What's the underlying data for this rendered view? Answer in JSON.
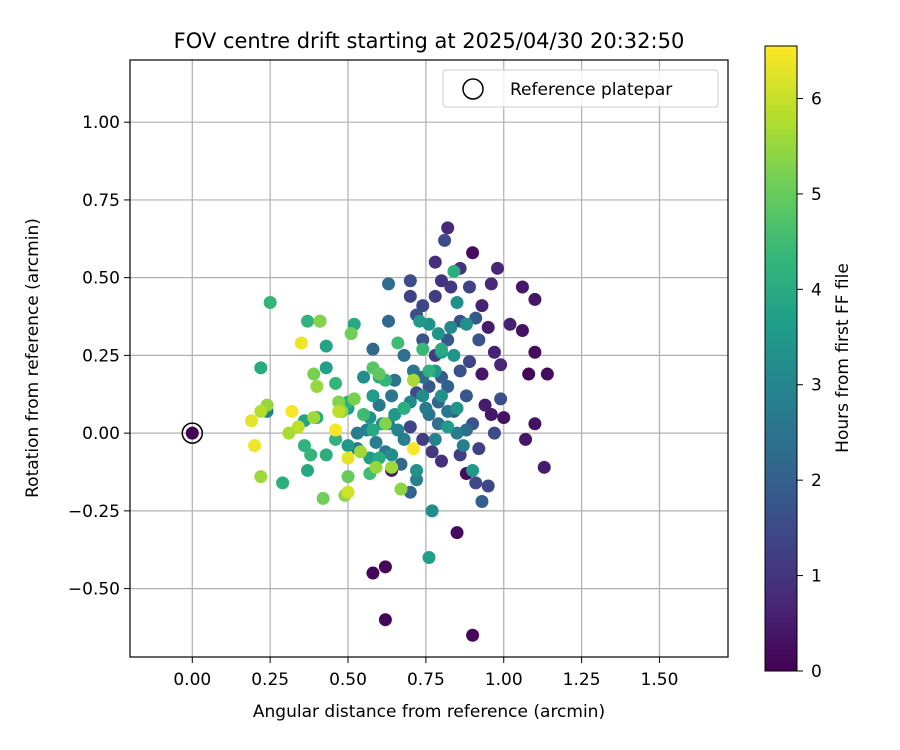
{
  "chart_data": {
    "type": "scatter",
    "title": "FOV centre drift starting at 2025/04/30 20:32:50",
    "xlabel": "Angular distance from reference (arcmin)",
    "ylabel": "Rotation from reference (arcmin)",
    "xlim": [
      -0.2,
      1.72
    ],
    "ylim": [
      -0.72,
      1.2
    ],
    "x_ticks": [
      0.0,
      0.25,
      0.5,
      0.75,
      1.0,
      1.25,
      1.5
    ],
    "x_tick_labels": [
      "0.00",
      "0.25",
      "0.50",
      "0.75",
      "1.00",
      "1.25",
      "1.50"
    ],
    "y_ticks": [
      -0.5,
      -0.25,
      0.0,
      0.25,
      0.5,
      0.75,
      1.0
    ],
    "y_tick_labels": [
      "−0.50",
      "−0.25",
      "0.00",
      "0.25",
      "0.50",
      "0.75",
      "1.00"
    ],
    "grid": true,
    "legend": {
      "placement": "top-right",
      "entries": [
        "Reference platepar"
      ]
    },
    "reference_point": {
      "x": 0.0,
      "y": 0.0,
      "label": "Reference platepar"
    },
    "colorbar": {
      "label": "Hours from first FF file",
      "min": 0,
      "max": 6.55,
      "ticks": [
        0,
        1,
        2,
        3,
        4,
        5,
        6
      ],
      "tick_labels": [
        "0",
        "1",
        "2",
        "3",
        "4",
        "5",
        "6"
      ],
      "colormap": "viridis",
      "colors": [
        "#440154",
        "#482878",
        "#3e4989",
        "#31688e",
        "#26828e",
        "#1f9e89",
        "#35b779",
        "#6ece58",
        "#b5de2b",
        "#fde725"
      ]
    },
    "points": [
      [
        0.0,
        0.0,
        0.0
      ],
      [
        0.58,
        -0.45,
        0.1
      ],
      [
        0.62,
        -0.43,
        0.1
      ],
      [
        0.62,
        -0.6,
        0.1
      ],
      [
        0.9,
        -0.65,
        0.1
      ],
      [
        0.85,
        -0.32,
        0.2
      ],
      [
        0.88,
        -0.13,
        0.2
      ],
      [
        0.64,
        -0.12,
        0.5
      ],
      [
        1.0,
        0.05,
        0.3
      ],
      [
        1.1,
        0.03,
        0.3
      ],
      [
        1.07,
        -0.02,
        0.4
      ],
      [
        1.13,
        -0.11,
        0.5
      ],
      [
        1.14,
        0.19,
        0.2
      ],
      [
        1.08,
        0.19,
        0.1
      ],
      [
        1.1,
        0.26,
        0.2
      ],
      [
        1.06,
        0.33,
        0.3
      ],
      [
        1.1,
        0.43,
        0.4
      ],
      [
        1.06,
        0.47,
        0.4
      ],
      [
        1.02,
        0.35,
        0.6
      ],
      [
        0.98,
        0.53,
        0.7
      ],
      [
        0.96,
        0.48,
        0.8
      ],
      [
        0.93,
        0.41,
        0.6
      ],
      [
        0.95,
        0.34,
        0.5
      ],
      [
        0.97,
        0.26,
        0.6
      ],
      [
        0.99,
        0.22,
        0.7
      ],
      [
        0.93,
        0.19,
        0.4
      ],
      [
        0.96,
        0.06,
        0.4
      ],
      [
        0.94,
        0.09,
        0.5
      ],
      [
        0.9,
        0.58,
        0.2
      ],
      [
        0.82,
        0.66,
        0.8
      ],
      [
        0.81,
        0.62,
        1.5
      ],
      [
        0.78,
        0.55,
        0.9
      ],
      [
        0.86,
        0.53,
        1.0
      ],
      [
        0.89,
        0.47,
        1.3
      ],
      [
        0.83,
        0.47,
        1.1
      ],
      [
        0.8,
        0.49,
        1.0
      ],
      [
        0.78,
        0.44,
        1.2
      ],
      [
        0.74,
        0.41,
        1.4
      ],
      [
        0.7,
        0.44,
        1.3
      ],
      [
        0.7,
        0.49,
        1.5
      ],
      [
        0.72,
        0.38,
        1.6
      ],
      [
        0.74,
        0.3,
        1.7
      ],
      [
        0.78,
        0.25,
        1.2
      ],
      [
        0.82,
        0.3,
        1.8
      ],
      [
        0.86,
        0.36,
        1.6
      ],
      [
        0.91,
        0.37,
        1.9
      ],
      [
        0.92,
        0.3,
        1.7
      ],
      [
        0.89,
        0.23,
        1.4
      ],
      [
        0.86,
        0.2,
        1.6
      ],
      [
        0.8,
        0.18,
        1.9
      ],
      [
        0.76,
        0.15,
        1.8
      ],
      [
        0.72,
        0.13,
        1.5
      ],
      [
        0.68,
        0.08,
        1.3
      ],
      [
        0.7,
        0.02,
        1.4
      ],
      [
        0.74,
        -0.02,
        1.2
      ],
      [
        0.77,
        -0.06,
        1.1
      ],
      [
        0.8,
        -0.09,
        0.9
      ],
      [
        0.86,
        -0.07,
        1.2
      ],
      [
        0.92,
        -0.05,
        1.3
      ],
      [
        0.9,
        0.03,
        1.7
      ],
      [
        0.84,
        0.07,
        1.9
      ],
      [
        0.79,
        0.1,
        2.1
      ],
      [
        0.82,
        0.15,
        2.0
      ],
      [
        0.88,
        0.12,
        1.8
      ],
      [
        0.91,
        -0.16,
        1.5
      ],
      [
        0.95,
        -0.17,
        1.4
      ],
      [
        0.93,
        -0.22,
        2.0
      ],
      [
        0.97,
        0.0,
        1.5
      ],
      [
        0.99,
        0.11,
        1.6
      ],
      [
        0.88,
        0.01,
        2.3
      ],
      [
        0.63,
        0.48,
        2.3
      ],
      [
        0.63,
        0.36,
        2.2
      ],
      [
        0.68,
        0.25,
        2.4
      ],
      [
        0.71,
        0.2,
        2.6
      ],
      [
        0.74,
        0.18,
        2.3
      ],
      [
        0.76,
        0.06,
        2.5
      ],
      [
        0.79,
        0.03,
        2.4
      ],
      [
        0.82,
        0.07,
        2.6
      ],
      [
        0.85,
        0.0,
        2.7
      ],
      [
        0.87,
        -0.04,
        2.8
      ],
      [
        0.72,
        -0.15,
        2.9
      ],
      [
        0.7,
        -0.19,
        2.1
      ],
      [
        0.67,
        -0.1,
        2.2
      ],
      [
        0.62,
        -0.06,
        2.6
      ],
      [
        0.59,
        -0.03,
        2.8
      ],
      [
        0.56,
        0.01,
        2.9
      ],
      [
        0.6,
        0.09,
        2.7
      ],
      [
        0.64,
        0.12,
        2.6
      ],
      [
        0.65,
        0.17,
        2.5
      ],
      [
        0.63,
        0.03,
        2.9
      ],
      [
        0.66,
        0.01,
        3.0
      ],
      [
        0.68,
        -0.02,
        2.8
      ],
      [
        0.75,
        0.08,
        2.7
      ],
      [
        0.78,
        -0.02,
        2.9
      ],
      [
        0.53,
        0.0,
        2.8
      ],
      [
        0.53,
        -0.05,
        2.6
      ],
      [
        0.58,
        0.27,
        2.2
      ],
      [
        0.24,
        0.07,
        2.9
      ],
      [
        0.77,
        -0.25,
        3.2
      ],
      [
        0.76,
        -0.4,
        3.7
      ],
      [
        0.9,
        -0.12,
        3.5
      ],
      [
        0.72,
        -0.12,
        3.3
      ],
      [
        0.76,
        0.35,
        3.3
      ],
      [
        0.73,
        0.36,
        3.5
      ],
      [
        0.79,
        0.32,
        3.4
      ],
      [
        0.83,
        0.34,
        3.1
      ],
      [
        0.88,
        0.35,
        3.3
      ],
      [
        0.85,
        0.42,
        3.2
      ],
      [
        0.84,
        0.25,
        3.4
      ],
      [
        0.8,
        0.26,
        3.6
      ],
      [
        0.78,
        0.2,
        3.5
      ],
      [
        0.74,
        0.12,
        3.2
      ],
      [
        0.8,
        0.12,
        3.3
      ],
      [
        0.85,
        0.08,
        3.4
      ],
      [
        0.82,
        0.02,
        3.6
      ],
      [
        0.7,
        0.1,
        3.1
      ],
      [
        0.65,
        0.06,
        3.5
      ],
      [
        0.58,
        0.12,
        3.6
      ],
      [
        0.55,
        0.18,
        3.2
      ],
      [
        0.57,
        0.05,
        3.4
      ],
      [
        0.61,
        0.03,
        3.3
      ],
      [
        0.64,
        -0.07,
        3.2
      ],
      [
        0.57,
        -0.08,
        3.6
      ],
      [
        0.5,
        -0.04,
        3.5
      ],
      [
        0.5,
        0.08,
        3.7
      ],
      [
        0.43,
        0.21,
        3.7
      ],
      [
        0.43,
        0.28,
        3.8
      ],
      [
        0.52,
        0.35,
        3.9
      ],
      [
        0.41,
        0.36,
        3.9
      ],
      [
        0.36,
        0.04,
        3.8
      ],
      [
        0.4,
        0.05,
        3.9
      ],
      [
        0.37,
        -0.12,
        3.9
      ],
      [
        0.29,
        -0.16,
        4.1
      ],
      [
        0.43,
        -0.07,
        4.1
      ],
      [
        0.46,
        -0.02,
        4.2
      ],
      [
        0.38,
        -0.07,
        4.3
      ],
      [
        0.36,
        -0.04,
        4.2
      ],
      [
        0.6,
        0.18,
        4.0
      ],
      [
        0.62,
        0.17,
        4.3
      ],
      [
        0.68,
        0.08,
        4.1
      ],
      [
        0.58,
        0.01,
        3.9
      ],
      [
        0.6,
        -0.08,
        4.0
      ],
      [
        0.84,
        0.52,
        4.1
      ],
      [
        0.8,
        0.27,
        4.0
      ],
      [
        0.76,
        0.2,
        4.2
      ],
      [
        0.22,
        0.21,
        4.0
      ],
      [
        0.25,
        0.42,
        4.3
      ],
      [
        0.37,
        0.36,
        4.2
      ],
      [
        0.46,
        0.16,
        4.3
      ],
      [
        0.48,
        0.07,
        4.1
      ],
      [
        0.5,
        0.1,
        4.2
      ],
      [
        0.55,
        0.06,
        4.5
      ],
      [
        0.57,
        -0.13,
        4.5
      ],
      [
        0.66,
        0.29,
        4.5
      ],
      [
        0.74,
        0.27,
        4.4
      ],
      [
        0.58,
        0.21,
        4.8
      ],
      [
        0.6,
        0.19,
        4.9
      ],
      [
        0.51,
        0.32,
        5.1
      ],
      [
        0.39,
        0.19,
        5.2
      ],
      [
        0.41,
        0.36,
        5.3
      ],
      [
        0.48,
        0.07,
        5.4
      ],
      [
        0.52,
        0.11,
        5.2
      ],
      [
        0.47,
        0.1,
        5.3
      ],
      [
        0.49,
        -0.2,
        5.4
      ],
      [
        0.5,
        -0.14,
        5.0
      ],
      [
        0.42,
        -0.21,
        5.1
      ],
      [
        0.54,
        -0.06,
        5.6
      ],
      [
        0.64,
        -0.11,
        5.6
      ],
      [
        0.59,
        -0.11,
        5.5
      ],
      [
        0.62,
        0.03,
        5.3
      ],
      [
        0.67,
        -0.18,
        5.4
      ],
      [
        0.71,
        0.17,
        5.7
      ],
      [
        0.4,
        0.15,
        5.5
      ],
      [
        0.39,
        0.05,
        5.6
      ],
      [
        0.24,
        0.09,
        5.5
      ],
      [
        0.22,
        0.07,
        5.8
      ],
      [
        0.22,
        -0.14,
        5.6
      ],
      [
        0.34,
        0.02,
        5.9
      ],
      [
        0.31,
        0.0,
        5.7
      ],
      [
        0.47,
        0.07,
        5.9
      ],
      [
        0.19,
        0.04,
        6.3
      ],
      [
        0.2,
        -0.04,
        6.4
      ],
      [
        0.32,
        0.07,
        6.5
      ],
      [
        0.35,
        0.29,
        6.4
      ],
      [
        0.46,
        0.01,
        6.5
      ],
      [
        0.5,
        -0.08,
        6.3
      ],
      [
        0.5,
        -0.19,
        6.1
      ],
      [
        0.71,
        -0.05,
        6.5
      ]
    ]
  }
}
